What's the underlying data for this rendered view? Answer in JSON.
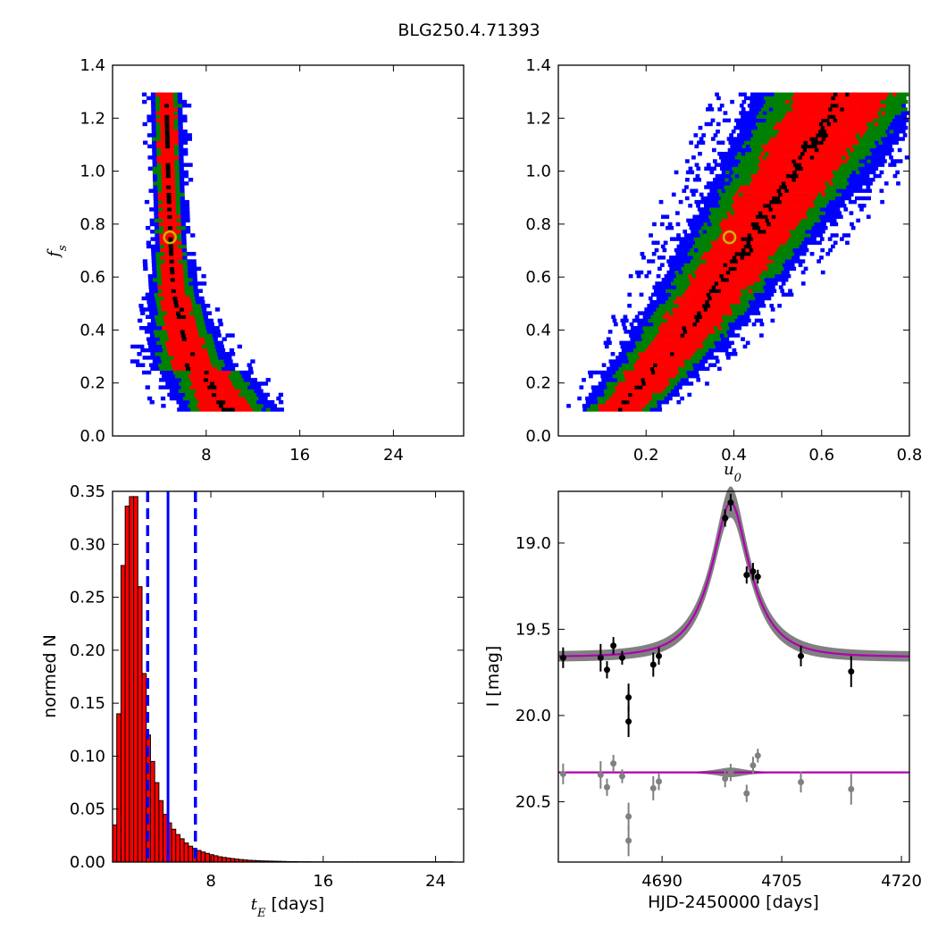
{
  "figure_title": "BLG250.4.71393",
  "chart_data": [
    {
      "type": "heatmap",
      "panel": "top-left",
      "xlabel": "",
      "ylabel": "f_s",
      "xlim": [
        0,
        30
      ],
      "ylim": [
        0.0,
        1.4
      ],
      "xticks": [
        8,
        16,
        24
      ],
      "yticks": [
        0.0,
        0.2,
        0.4,
        0.6,
        0.8,
        1.0,
        1.2,
        1.4
      ],
      "colors": {
        "outer": "#0000ff",
        "middle": "#008000",
        "inner": "#ff0000",
        "core": "#000000",
        "marker": "#c8b400"
      },
      "best_fit": {
        "x": 4.9,
        "y": 0.75
      },
      "curve": {
        "a": 0.62,
        "b": 1.18,
        "comment_free": true
      },
      "fs_range": [
        0.1,
        1.29
      ]
    },
    {
      "type": "heatmap",
      "panel": "top-right",
      "xlabel": "u_0",
      "ylabel": "",
      "xlim": [
        0.0,
        0.8
      ],
      "ylim": [
        0.0,
        1.4
      ],
      "xticks": [
        0.2,
        0.4,
        0.6,
        0.8
      ],
      "yticks": [
        0.0,
        0.2,
        0.4,
        0.6,
        0.8,
        1.0,
        1.2,
        1.4
      ],
      "colors": {
        "outer": "#0000ff",
        "middle": "#008000",
        "inner": "#ff0000",
        "core": "#000000",
        "marker": "#c8b400"
      },
      "best_fit": {
        "x": 0.39,
        "y": 0.75
      },
      "fs_range": [
        0.1,
        1.29
      ]
    },
    {
      "type": "bar",
      "panel": "bottom-left",
      "xlabel": "t_E [days]",
      "ylabel": "normed N",
      "xlim": [
        1,
        26
      ],
      "ylim": [
        0.0,
        0.35
      ],
      "xticks": [
        8,
        16,
        24
      ],
      "yticks": [
        0.0,
        0.05,
        0.1,
        0.15,
        0.2,
        0.25,
        0.3,
        0.35
      ],
      "bin_start": 1.0,
      "bin_width": 0.3,
      "values": [
        0.035,
        0.14,
        0.28,
        0.336,
        0.345,
        0.345,
        0.26,
        0.178,
        0.12,
        0.095,
        0.075,
        0.058,
        0.045,
        0.037,
        0.031,
        0.026,
        0.022,
        0.018,
        0.015,
        0.013,
        0.011,
        0.0095,
        0.0082,
        0.007,
        0.006,
        0.005,
        0.0044,
        0.0038,
        0.0033,
        0.0028,
        0.0024,
        0.002,
        0.0017,
        0.0015,
        0.0013,
        0.0011,
        0.001,
        0.0009,
        0.0008,
        0.0007,
        0.0006,
        0.0005,
        0.0004,
        0.0004,
        0.0003,
        0.0003,
        0.0003,
        0.0002,
        0.0002,
        0.0002,
        0.0002,
        0.0002,
        0.0002,
        0.0002,
        0.0002,
        0.0002,
        0.0002,
        0.0002,
        0.0002,
        0.0002,
        0.0002,
        0.0002,
        0.0002,
        0.0002,
        0.0002,
        0.0002,
        0.0002,
        0.0002,
        0.0002,
        0.0002,
        0.0002,
        0.0002,
        0.0002,
        0.0002,
        0.0002,
        0.0002,
        0.0002,
        0.0002,
        0.0002,
        0.0002,
        0.0002
      ],
      "bar_color": "#ff0000",
      "dashed_lines_x": [
        3.5,
        6.9
      ],
      "solid_line_x": 4.95,
      "line_color": "#0000ff"
    },
    {
      "type": "line",
      "panel": "bottom-right",
      "xlabel": "HJD-2450000 [days]",
      "ylabel": "I [mag]",
      "xlim": [
        4677,
        4721
      ],
      "ylim": [
        20.85,
        18.7
      ],
      "xticks": [
        4690,
        4705,
        4720
      ],
      "yticks": [
        19.0,
        19.5,
        20.0,
        20.5
      ],
      "ytick_labels": [
        "19.0",
        "19.5",
        "20.0",
        "20.5"
      ],
      "model": {
        "t0": 4698.6,
        "tE": 4.9,
        "u0": 0.39,
        "baseline": 19.66,
        "fs": 0.75
      },
      "residual_offset": 20.33,
      "model_color": "#b000b0",
      "band_color": "#808080",
      "points": [
        {
          "t": 4677.6,
          "mag": 19.665,
          "err": 0.06
        },
        {
          "t": 4682.3,
          "mag": 19.665,
          "err": 0.08
        },
        {
          "t": 4683.1,
          "mag": 19.735,
          "err": 0.05
        },
        {
          "t": 4683.9,
          "mag": 19.595,
          "err": 0.05
        },
        {
          "t": 4685.0,
          "mag": 19.665,
          "err": 0.04
        },
        {
          "t": 4685.8,
          "mag": 19.895,
          "err": 0.08
        },
        {
          "t": 4685.8,
          "mag": 20.035,
          "err": 0.09
        },
        {
          "t": 4688.9,
          "mag": 19.705,
          "err": 0.07
        },
        {
          "t": 4689.6,
          "mag": 19.655,
          "err": 0.05
        },
        {
          "t": 4697.9,
          "mag": 18.855,
          "err": 0.05
        },
        {
          "t": 4698.6,
          "mag": 18.765,
          "err": 0.05
        },
        {
          "t": 4700.6,
          "mag": 19.185,
          "err": 0.05
        },
        {
          "t": 4701.4,
          "mag": 19.165,
          "err": 0.05
        },
        {
          "t": 4702.0,
          "mag": 19.195,
          "err": 0.04
        },
        {
          "t": 4707.4,
          "mag": 19.655,
          "err": 0.06
        },
        {
          "t": 4713.7,
          "mag": 19.745,
          "err": 0.09
        }
      ]
    }
  ]
}
